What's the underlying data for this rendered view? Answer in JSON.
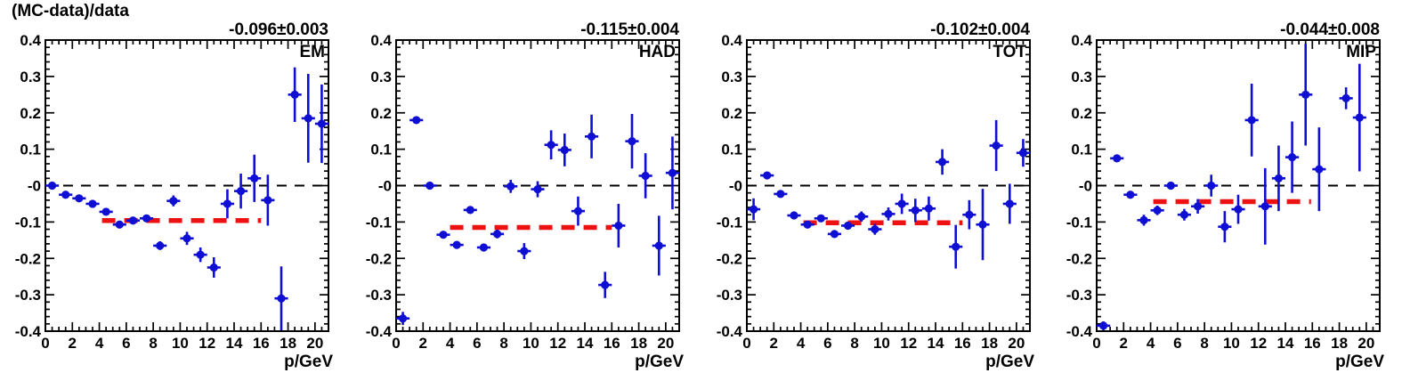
{
  "figure": {
    "title": "(MC-data)/data",
    "x_axis_title": "p/GeV"
  },
  "chart_data": {
    "type": "scatter",
    "title": "(MC-data)/data",
    "xlabel": "p/GeV",
    "ylabel": "(MC-data)/data",
    "xlim": [
      0,
      21
    ],
    "ylim": [
      -0.4,
      0.4
    ],
    "x_tick_labels": [
      "0",
      "2",
      "4",
      "6",
      "8",
      "10",
      "12",
      "14",
      "16",
      "18",
      "20"
    ],
    "y_tick_labels": [
      "0.4",
      "0.3",
      "0.2",
      "0.1",
      "-0",
      "-0.1",
      "-0.2",
      "-0.3",
      "-0.4"
    ],
    "x_major_tick_step": 2,
    "x_minor_tick_step": 0.5,
    "y_major_tick_step": 0.1,
    "y_minor_tick_step": 0.02,
    "grid": false,
    "legend_position": "none",
    "marker": "filled-circle",
    "x_bin_halfwidth": 0.5,
    "zero_line": {
      "y": 0,
      "style": "dashed",
      "color": "#000000"
    },
    "colors": {
      "marker": "#0f0fd4",
      "fit_line": "#ee1111",
      "fit_text": "#ee1111",
      "axis": "#000000",
      "background": "#ffffff"
    },
    "panels": [
      {
        "label": "EM",
        "fit_label": "-0.096±0.003",
        "fit_value": -0.096,
        "fit_error": 0.003,
        "fit_range": [
          4.2,
          16.0
        ],
        "points": [
          [
            0.5,
            0.0,
            0.006
          ],
          [
            1.5,
            -0.025,
            0.006
          ],
          [
            2.5,
            -0.035,
            0.006
          ],
          [
            3.5,
            -0.05,
            0.006
          ],
          [
            4.5,
            -0.072,
            0.007
          ],
          [
            5.5,
            -0.107,
            0.008
          ],
          [
            6.5,
            -0.096,
            0.008
          ],
          [
            7.5,
            -0.09,
            0.01
          ],
          [
            8.5,
            -0.165,
            0.012
          ],
          [
            9.5,
            -0.042,
            0.015
          ],
          [
            10.5,
            -0.145,
            0.018
          ],
          [
            11.5,
            -0.19,
            0.02
          ],
          [
            12.5,
            -0.225,
            0.028
          ],
          [
            13.5,
            -0.05,
            0.04
          ],
          [
            14.5,
            -0.015,
            0.048
          ],
          [
            15.5,
            0.02,
            0.065
          ],
          [
            16.5,
            -0.04,
            0.07
          ],
          [
            17.5,
            -0.31,
            0.088
          ],
          [
            18.5,
            0.25,
            0.075
          ],
          [
            19.5,
            0.185,
            0.122
          ],
          [
            20.5,
            0.17,
            0.108
          ]
        ]
      },
      {
        "label": "HAD",
        "fit_label": "-0.115±0.004",
        "fit_value": -0.115,
        "fit_error": 0.004,
        "fit_range": [
          4.0,
          16.0
        ],
        "points": [
          [
            0.5,
            -0.365,
            0.018
          ],
          [
            1.5,
            0.18,
            0.008
          ],
          [
            2.5,
            0.0,
            0.006
          ],
          [
            3.5,
            -0.135,
            0.008
          ],
          [
            4.5,
            -0.163,
            0.008
          ],
          [
            5.5,
            -0.067,
            0.008
          ],
          [
            6.5,
            -0.17,
            0.009
          ],
          [
            7.5,
            -0.133,
            0.012
          ],
          [
            8.5,
            -0.002,
            0.018
          ],
          [
            9.5,
            -0.18,
            0.022
          ],
          [
            10.5,
            -0.01,
            0.022
          ],
          [
            11.5,
            0.112,
            0.04
          ],
          [
            12.5,
            0.098,
            0.045
          ],
          [
            13.5,
            -0.07,
            0.04
          ],
          [
            14.5,
            0.135,
            0.06
          ],
          [
            15.5,
            -0.273,
            0.036
          ],
          [
            16.5,
            -0.11,
            0.06
          ],
          [
            17.5,
            0.122,
            0.075
          ],
          [
            18.5,
            0.027,
            0.062
          ],
          [
            19.5,
            -0.165,
            0.082
          ],
          [
            20.5,
            0.035,
            0.1
          ]
        ]
      },
      {
        "label": "TOT",
        "fit_label": "-0.102±0.004",
        "fit_value": -0.102,
        "fit_error": 0.004,
        "fit_range": [
          4.2,
          16.0
        ],
        "points": [
          [
            0.5,
            -0.065,
            0.03
          ],
          [
            1.5,
            0.028,
            0.008
          ],
          [
            2.5,
            -0.023,
            0.007
          ],
          [
            3.5,
            -0.082,
            0.007
          ],
          [
            4.5,
            -0.107,
            0.007
          ],
          [
            5.5,
            -0.09,
            0.008
          ],
          [
            6.5,
            -0.133,
            0.008
          ],
          [
            7.5,
            -0.11,
            0.01
          ],
          [
            8.5,
            -0.085,
            0.014
          ],
          [
            9.5,
            -0.12,
            0.015
          ],
          [
            10.5,
            -0.078,
            0.018
          ],
          [
            11.5,
            -0.05,
            0.028
          ],
          [
            12.5,
            -0.068,
            0.032
          ],
          [
            13.5,
            -0.063,
            0.033
          ],
          [
            14.5,
            0.065,
            0.035
          ],
          [
            15.5,
            -0.168,
            0.06
          ],
          [
            16.5,
            -0.08,
            0.04
          ],
          [
            17.5,
            -0.107,
            0.098
          ],
          [
            18.5,
            0.11,
            0.07
          ],
          [
            19.5,
            -0.05,
            0.055
          ],
          [
            20.5,
            0.09,
            0.038
          ]
        ]
      },
      {
        "label": "MIP",
        "fit_label": "-0.044±0.008",
        "fit_value": -0.044,
        "fit_error": 0.008,
        "fit_range": [
          4.2,
          15.9
        ],
        "points": [
          [
            0.5,
            -0.385,
            0.012
          ],
          [
            1.5,
            0.075,
            0.01
          ],
          [
            2.5,
            -0.025,
            0.01
          ],
          [
            3.5,
            -0.095,
            0.015
          ],
          [
            4.5,
            -0.068,
            0.013
          ],
          [
            5.5,
            0.0,
            0.01
          ],
          [
            6.5,
            -0.08,
            0.016
          ],
          [
            7.5,
            -0.057,
            0.02
          ],
          [
            8.5,
            0.0,
            0.03
          ],
          [
            9.5,
            -0.113,
            0.043
          ],
          [
            10.5,
            -0.065,
            0.04
          ],
          [
            11.5,
            0.18,
            0.1
          ],
          [
            12.5,
            -0.057,
            0.105
          ],
          [
            13.5,
            0.02,
            0.09
          ],
          [
            14.5,
            0.078,
            0.098
          ],
          [
            15.5,
            0.25,
            0.14
          ],
          [
            16.5,
            0.045,
            0.115
          ],
          [
            18.5,
            0.24,
            0.03
          ],
          [
            19.5,
            0.187,
            0.148
          ]
        ]
      }
    ]
  }
}
